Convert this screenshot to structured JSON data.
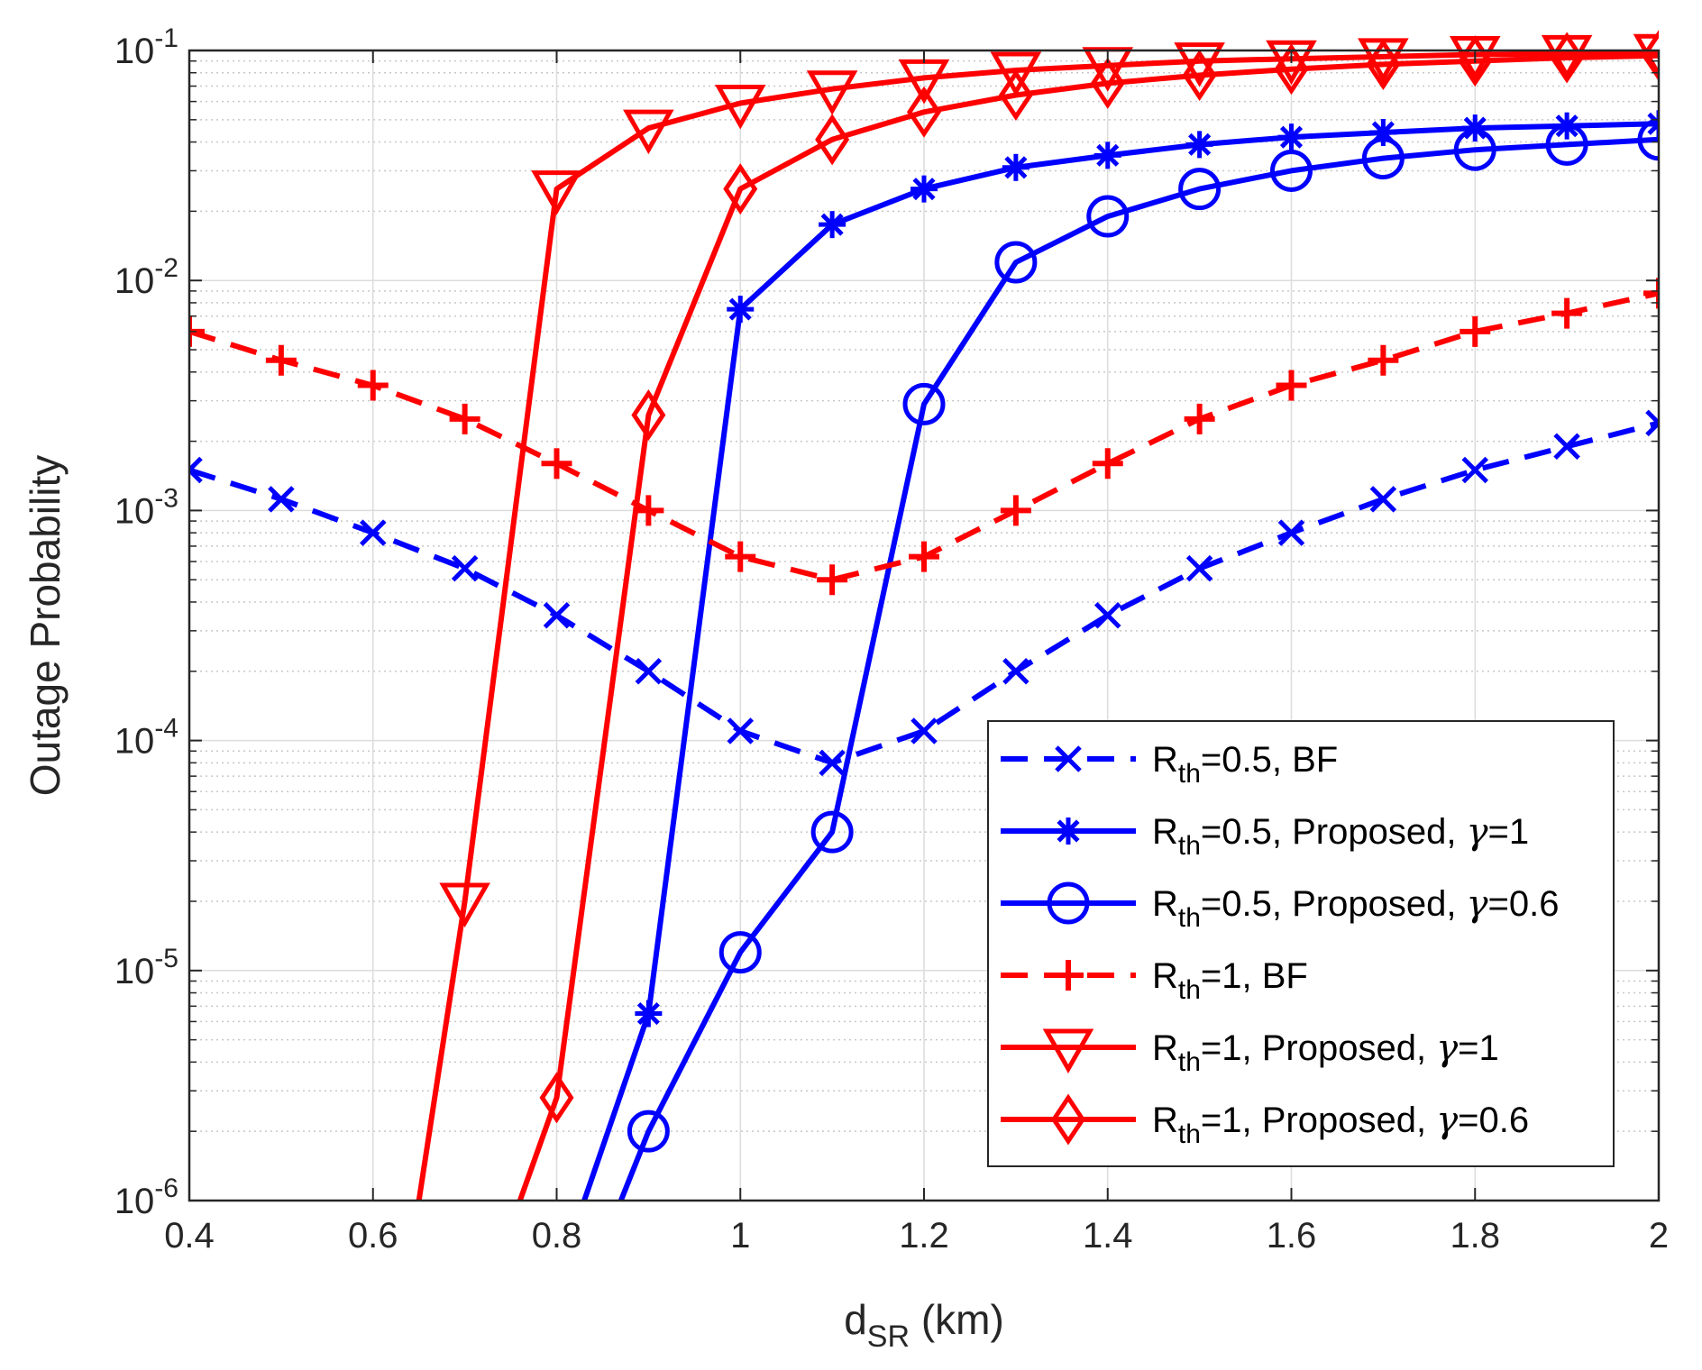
{
  "chart_data": {
    "type": "line",
    "y_scale": "log",
    "xlabel": "d_SR (km)",
    "xlabel_parts": {
      "main": "d",
      "sub": "SR",
      "unit": "(km)"
    },
    "ylabel": "Outage Probability",
    "xlim": [
      0.4,
      2
    ],
    "ylim": [
      1e-06,
      0.1
    ],
    "grid": true,
    "minor_grid": true,
    "legend_position": "bottom-right",
    "x_ticks": [
      "0.4",
      "0.6",
      "0.8",
      "1",
      "1.2",
      "1.4",
      "1.6",
      "1.8",
      "2"
    ],
    "x_tick_values": [
      0.4,
      0.6,
      0.8,
      1.0,
      1.2,
      1.4,
      1.6,
      1.8,
      2.0
    ],
    "y_ticks": [
      {
        "value": 0.1,
        "base": "10",
        "exp": "-1"
      },
      {
        "value": 0.01,
        "base": "10",
        "exp": "-2"
      },
      {
        "value": 0.001,
        "base": "10",
        "exp": "-3"
      },
      {
        "value": 0.0001,
        "base": "10",
        "exp": "-4"
      },
      {
        "value": 1e-05,
        "base": "10",
        "exp": "-5"
      },
      {
        "value": 1e-06,
        "base": "10",
        "exp": "-6"
      }
    ],
    "series": [
      {
        "name": "R_th=0.5, BF",
        "legend": {
          "pre": "R",
          "sub": "th",
          "post": "=0.5, BF",
          "greek": "",
          "tail": ""
        },
        "color": "#0000ff",
        "dash": "dashed",
        "marker": "x",
        "x": [
          0.4,
          0.5,
          0.6,
          0.7,
          0.8,
          0.9,
          1.0,
          1.1,
          1.2,
          1.3,
          1.4,
          1.5,
          1.6,
          1.7,
          1.8,
          1.9,
          2.0
        ],
        "y": [
          0.0015,
          0.00112,
          0.0008,
          0.00056,
          0.00035,
          0.0002,
          0.00011,
          8e-05,
          0.00011,
          0.0002,
          0.00035,
          0.00056,
          0.0008,
          0.00112,
          0.0015,
          0.0019,
          0.0024
        ]
      },
      {
        "name": "R_th=0.5, Proposed, γ=1",
        "legend": {
          "pre": "R",
          "sub": "th",
          "post": "=0.5, Proposed, ",
          "greek": "γ",
          "tail": "=1"
        },
        "color": "#0000ff",
        "dash": "solid",
        "marker": "asterisk",
        "x": [
          0.83,
          0.9,
          1.0,
          1.1,
          1.2,
          1.3,
          1.4,
          1.5,
          1.6,
          1.7,
          1.8,
          1.9,
          2.0
        ],
        "y": [
          1e-06,
          6.5e-06,
          0.0075,
          0.0175,
          0.025,
          0.031,
          0.035,
          0.039,
          0.042,
          0.044,
          0.046,
          0.047,
          0.048
        ]
      },
      {
        "name": "R_th=0.5, Proposed, γ=0.6",
        "legend": {
          "pre": "R",
          "sub": "th",
          "post": "=0.5, Proposed, ",
          "greek": "γ",
          "tail": "=0.6"
        },
        "color": "#0000ff",
        "dash": "solid",
        "marker": "circle",
        "x": [
          0.87,
          0.9,
          1.0,
          1.1,
          1.2,
          1.3,
          1.4,
          1.5,
          1.6,
          1.7,
          1.8,
          1.9,
          2.0
        ],
        "y": [
          1e-06,
          2e-06,
          1.2e-05,
          4e-05,
          0.0029,
          0.012,
          0.019,
          0.025,
          0.03,
          0.034,
          0.037,
          0.039,
          0.041
        ]
      },
      {
        "name": "R_th=1, BF",
        "legend": {
          "pre": "R",
          "sub": "th",
          "post": "=1, BF",
          "greek": "",
          "tail": ""
        },
        "color": "#ff0000",
        "dash": "dashed",
        "marker": "plus",
        "x": [
          0.4,
          0.5,
          0.6,
          0.7,
          0.8,
          0.9,
          1.0,
          1.1,
          1.2,
          1.3,
          1.4,
          1.5,
          1.6,
          1.7,
          1.8,
          1.9,
          2.0
        ],
        "y": [
          0.006,
          0.0045,
          0.0035,
          0.0025,
          0.0016,
          0.001,
          0.00063,
          0.0005,
          0.00063,
          0.001,
          0.0016,
          0.0025,
          0.0035,
          0.0045,
          0.006,
          0.0072,
          0.0088
        ]
      },
      {
        "name": "R_th=1, Proposed, γ=1",
        "legend": {
          "pre": "R",
          "sub": "th",
          "post": "=1, Proposed, ",
          "greek": "γ",
          "tail": "=1"
        },
        "color": "#ff0000",
        "dash": "solid",
        "marker": "triangle-down",
        "x": [
          0.65,
          0.7,
          0.8,
          0.9,
          1.0,
          1.1,
          1.2,
          1.3,
          1.4,
          1.5,
          1.6,
          1.7,
          1.8,
          1.9,
          2.0
        ],
        "y": [
          1e-06,
          2e-05,
          0.025,
          0.046,
          0.059,
          0.068,
          0.076,
          0.082,
          0.086,
          0.09,
          0.092,
          0.094,
          0.096,
          0.097,
          0.098
        ]
      },
      {
        "name": "R_th=1, Proposed, γ=0.6",
        "legend": {
          "pre": "R",
          "sub": "th",
          "post": "=1, Proposed, ",
          "greek": "γ",
          "tail": "=0.6"
        },
        "color": "#ff0000",
        "dash": "solid",
        "marker": "diamond",
        "x": [
          0.76,
          0.8,
          0.9,
          1.0,
          1.1,
          1.2,
          1.3,
          1.4,
          1.5,
          1.6,
          1.7,
          1.8,
          1.9,
          2.0
        ],
        "y": [
          1e-06,
          2.8e-06,
          0.0026,
          0.025,
          0.041,
          0.054,
          0.064,
          0.072,
          0.078,
          0.083,
          0.087,
          0.09,
          0.093,
          0.095
        ]
      }
    ]
  }
}
